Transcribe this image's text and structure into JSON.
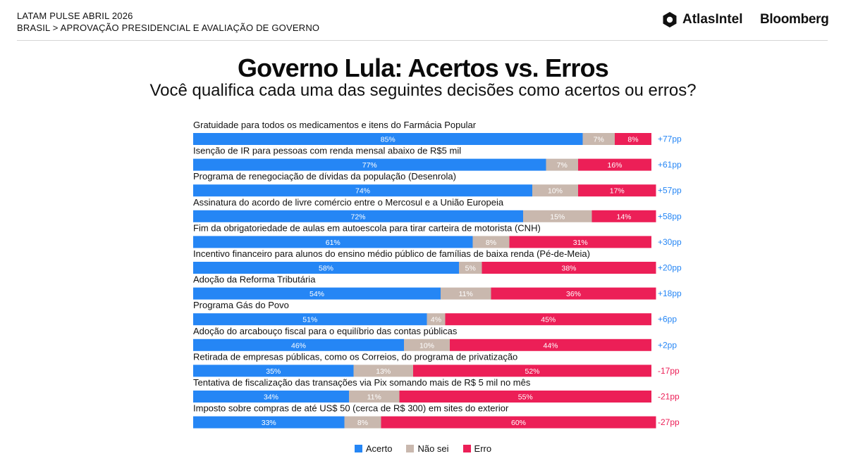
{
  "header": {
    "line1": "LATAM PULSE ABRIL 2026",
    "line2": "BRASIL > APROVAÇÃO PRESIDENCIAL E AVALIAÇÃO DE GOVERNO"
  },
  "brands": {
    "atlas": "AtlasIntel",
    "bloomberg": "Bloomberg"
  },
  "colors": {
    "acerto": "#2586f5",
    "nao_sei": "#c9b8ae",
    "erro": "#ec1f57",
    "positive_diff": "#2586f5",
    "negative_diff": "#ec1f57"
  },
  "chart_data": {
    "type": "bar",
    "orientation": "horizontal-stacked-100",
    "title": "Governo Lula: Acertos vs. Erros",
    "subtitle": "Você qualifica cada uma das seguintes decisões como acertos ou erros?",
    "categories": [
      "Gratuidade para todos os medicamentos e itens do Farmácia Popular",
      "Isenção de IR para pessoas com renda mensal abaixo de R$5 mil",
      "Programa de renegociação de dívidas da população (Desenrola)",
      "Assinatura do acordo de livre comércio entre o Mercosul e a União Europeia",
      "Fim da obrigatoriedade de aulas em autoescola para tirar carteira de motorista (CNH)",
      "Incentivo financeiro para alunos do ensino médio público de famílias de baixa renda (Pé-de-Meia)",
      "Adoção da Reforma Tributária",
      "Programa Gás do Povo",
      "Adoção do arcabouço fiscal para o equilíbrio das contas públicas",
      "Retirada de empresas públicas, como os Correios, do programa de privatização",
      "Tentativa de fiscalização das transações via Pix somando mais de R$ 5 mil no mês",
      "Imposto sobre compras de até US$ 50 (cerca de R$ 300) em sites do exterior"
    ],
    "series": [
      {
        "name": "Acerto",
        "values": [
          85,
          77,
          74,
          72,
          61,
          58,
          54,
          51,
          46,
          35,
          34,
          33
        ]
      },
      {
        "name": "Não sei",
        "values": [
          7,
          7,
          10,
          15,
          8,
          5,
          11,
          4,
          10,
          13,
          11,
          8
        ]
      },
      {
        "name": "Erro",
        "values": [
          8,
          16,
          17,
          14,
          31,
          38,
          36,
          45,
          44,
          52,
          55,
          60
        ]
      }
    ],
    "value_labels": {
      "Acerto": [
        "85%",
        "77%",
        "74%",
        "72%",
        "61%",
        "58%",
        "54%",
        "51%",
        "46%",
        "35%",
        "34%",
        "33%"
      ],
      "Não sei": [
        "7%",
        "7%",
        "10%",
        "15%",
        "8%",
        "5%",
        "11%",
        "4%",
        "10%",
        "13%",
        "11%",
        "8%"
      ],
      "Erro": [
        "8%",
        "16%",
        "17%",
        "14%",
        "31%",
        "38%",
        "36%",
        "45%",
        "44%",
        "52%",
        "55%",
        "60%"
      ]
    },
    "differences": [
      "+77pp",
      "+61pp",
      "+57pp",
      "+58pp",
      "+30pp",
      "+20pp",
      "+18pp",
      "+6pp",
      "+2pp",
      "-17pp",
      "-21pp",
      "-27pp"
    ],
    "legend": [
      "Acerto",
      "Não sei",
      "Erro"
    ],
    "legend_position": "bottom",
    "xlim": [
      0,
      100
    ],
    "grid": false
  }
}
